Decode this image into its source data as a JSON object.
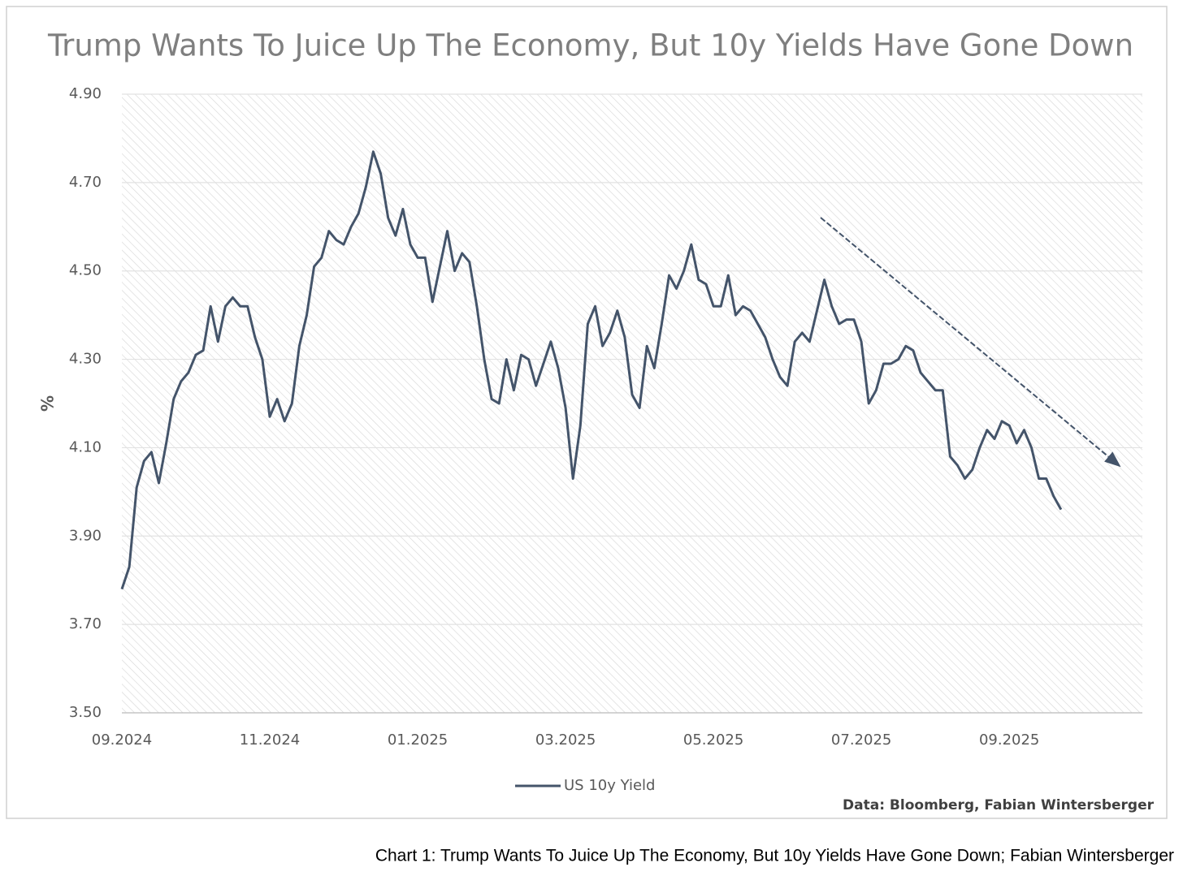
{
  "chart_data": {
    "type": "line",
    "title": "Trump Wants To Juice Up The Economy, But 10y Yields Have Gone Down",
    "ylabel": "%",
    "source": "Data: Bloomberg, Fabian Wintersberger",
    "caption": "Chart 1: Trump Wants To Juice Up The Economy, But 10y Yields Have Gone Down; Fabian Wintersberger",
    "categories": [
      "09.2024",
      null,
      null,
      null,
      null,
      null,
      null,
      null,
      null,
      null,
      null,
      null,
      null,
      null,
      null,
      null,
      null,
      null,
      null,
      null,
      "11.2024",
      null,
      null,
      null,
      null,
      null,
      null,
      null,
      null,
      null,
      null,
      null,
      null,
      null,
      null,
      null,
      null,
      null,
      null,
      null,
      "01.2025",
      null,
      null,
      null,
      null,
      null,
      null,
      null,
      null,
      null,
      null,
      null,
      null,
      null,
      null,
      null,
      null,
      null,
      null,
      null,
      "03.2025",
      null,
      null,
      null,
      null,
      null,
      null,
      null,
      null,
      null,
      null,
      null,
      null,
      null,
      null,
      null,
      null,
      null,
      null,
      null,
      "05.2025",
      null,
      null,
      null,
      null,
      null,
      null,
      null,
      null,
      null,
      null,
      null,
      null,
      null,
      null,
      null,
      null,
      null,
      null,
      null,
      "07.2025",
      null,
      null,
      null,
      null,
      null,
      null,
      null,
      null,
      null,
      null,
      null,
      null,
      null,
      null,
      null,
      null,
      null,
      null,
      null,
      "09.2025",
      null,
      null,
      null,
      null,
      null,
      null,
      null,
      null,
      null,
      null,
      null,
      null,
      null,
      null,
      null,
      null,
      null,
      null
    ],
    "series": [
      {
        "name": "US 10y Yield",
        "color": "#44546a",
        "values": [
          3.78,
          3.83,
          4.01,
          4.07,
          4.09,
          4.02,
          4.11,
          4.21,
          4.25,
          4.27,
          4.31,
          4.32,
          4.42,
          4.34,
          4.42,
          4.44,
          4.42,
          4.42,
          4.35,
          4.3,
          4.17,
          4.21,
          4.16,
          4.2,
          4.33,
          4.4,
          4.51,
          4.53,
          4.59,
          4.57,
          4.56,
          4.6,
          4.63,
          4.69,
          4.77,
          4.72,
          4.62,
          4.58,
          4.64,
          4.56,
          4.53,
          4.53,
          4.43,
          4.51,
          4.59,
          4.5,
          4.54,
          4.52,
          4.42,
          4.3,
          4.21,
          4.2,
          4.3,
          4.23,
          4.31,
          4.3,
          4.24,
          4.29,
          4.34,
          4.28,
          4.19,
          4.03,
          4.15,
          4.38,
          4.42,
          4.33,
          4.36,
          4.41,
          4.35,
          4.22,
          4.19,
          4.33,
          4.28,
          4.38,
          4.49,
          4.46,
          4.5,
          4.56,
          4.48,
          4.47,
          4.42,
          4.42,
          4.49,
          4.4,
          4.42,
          4.41,
          4.38,
          4.35,
          4.3,
          4.26,
          4.24,
          4.34,
          4.36,
          4.34,
          4.41,
          4.48,
          4.42,
          4.38,
          4.39,
          4.39,
          4.34,
          4.2,
          4.23,
          4.29,
          4.29,
          4.3,
          4.33,
          4.32,
          4.27,
          4.25,
          4.23,
          4.23,
          4.08,
          4.06,
          4.03,
          4.05,
          4.1,
          4.14,
          4.12,
          4.16,
          4.15,
          4.11,
          4.14,
          4.1,
          4.03,
          4.03,
          3.99,
          3.96,
          null,
          null,
          null,
          null,
          null,
          null,
          null,
          null,
          null,
          null,
          null
        ]
      }
    ],
    "ylim": [
      3.5,
      4.9
    ],
    "yticks": [
      {
        "value": 3.5,
        "label": "3.50"
      },
      {
        "value": 3.7,
        "label": "3.70"
      },
      {
        "value": 3.9,
        "label": "3.90"
      },
      {
        "value": 4.1,
        "label": "4.10"
      },
      {
        "value": 4.3,
        "label": "4.30"
      },
      {
        "value": 4.5,
        "label": "4.50"
      },
      {
        "value": 4.7,
        "label": "4.70"
      },
      {
        "value": 4.9,
        "label": "4.90"
      }
    ],
    "grid": true,
    "legend": "bottom"
  }
}
